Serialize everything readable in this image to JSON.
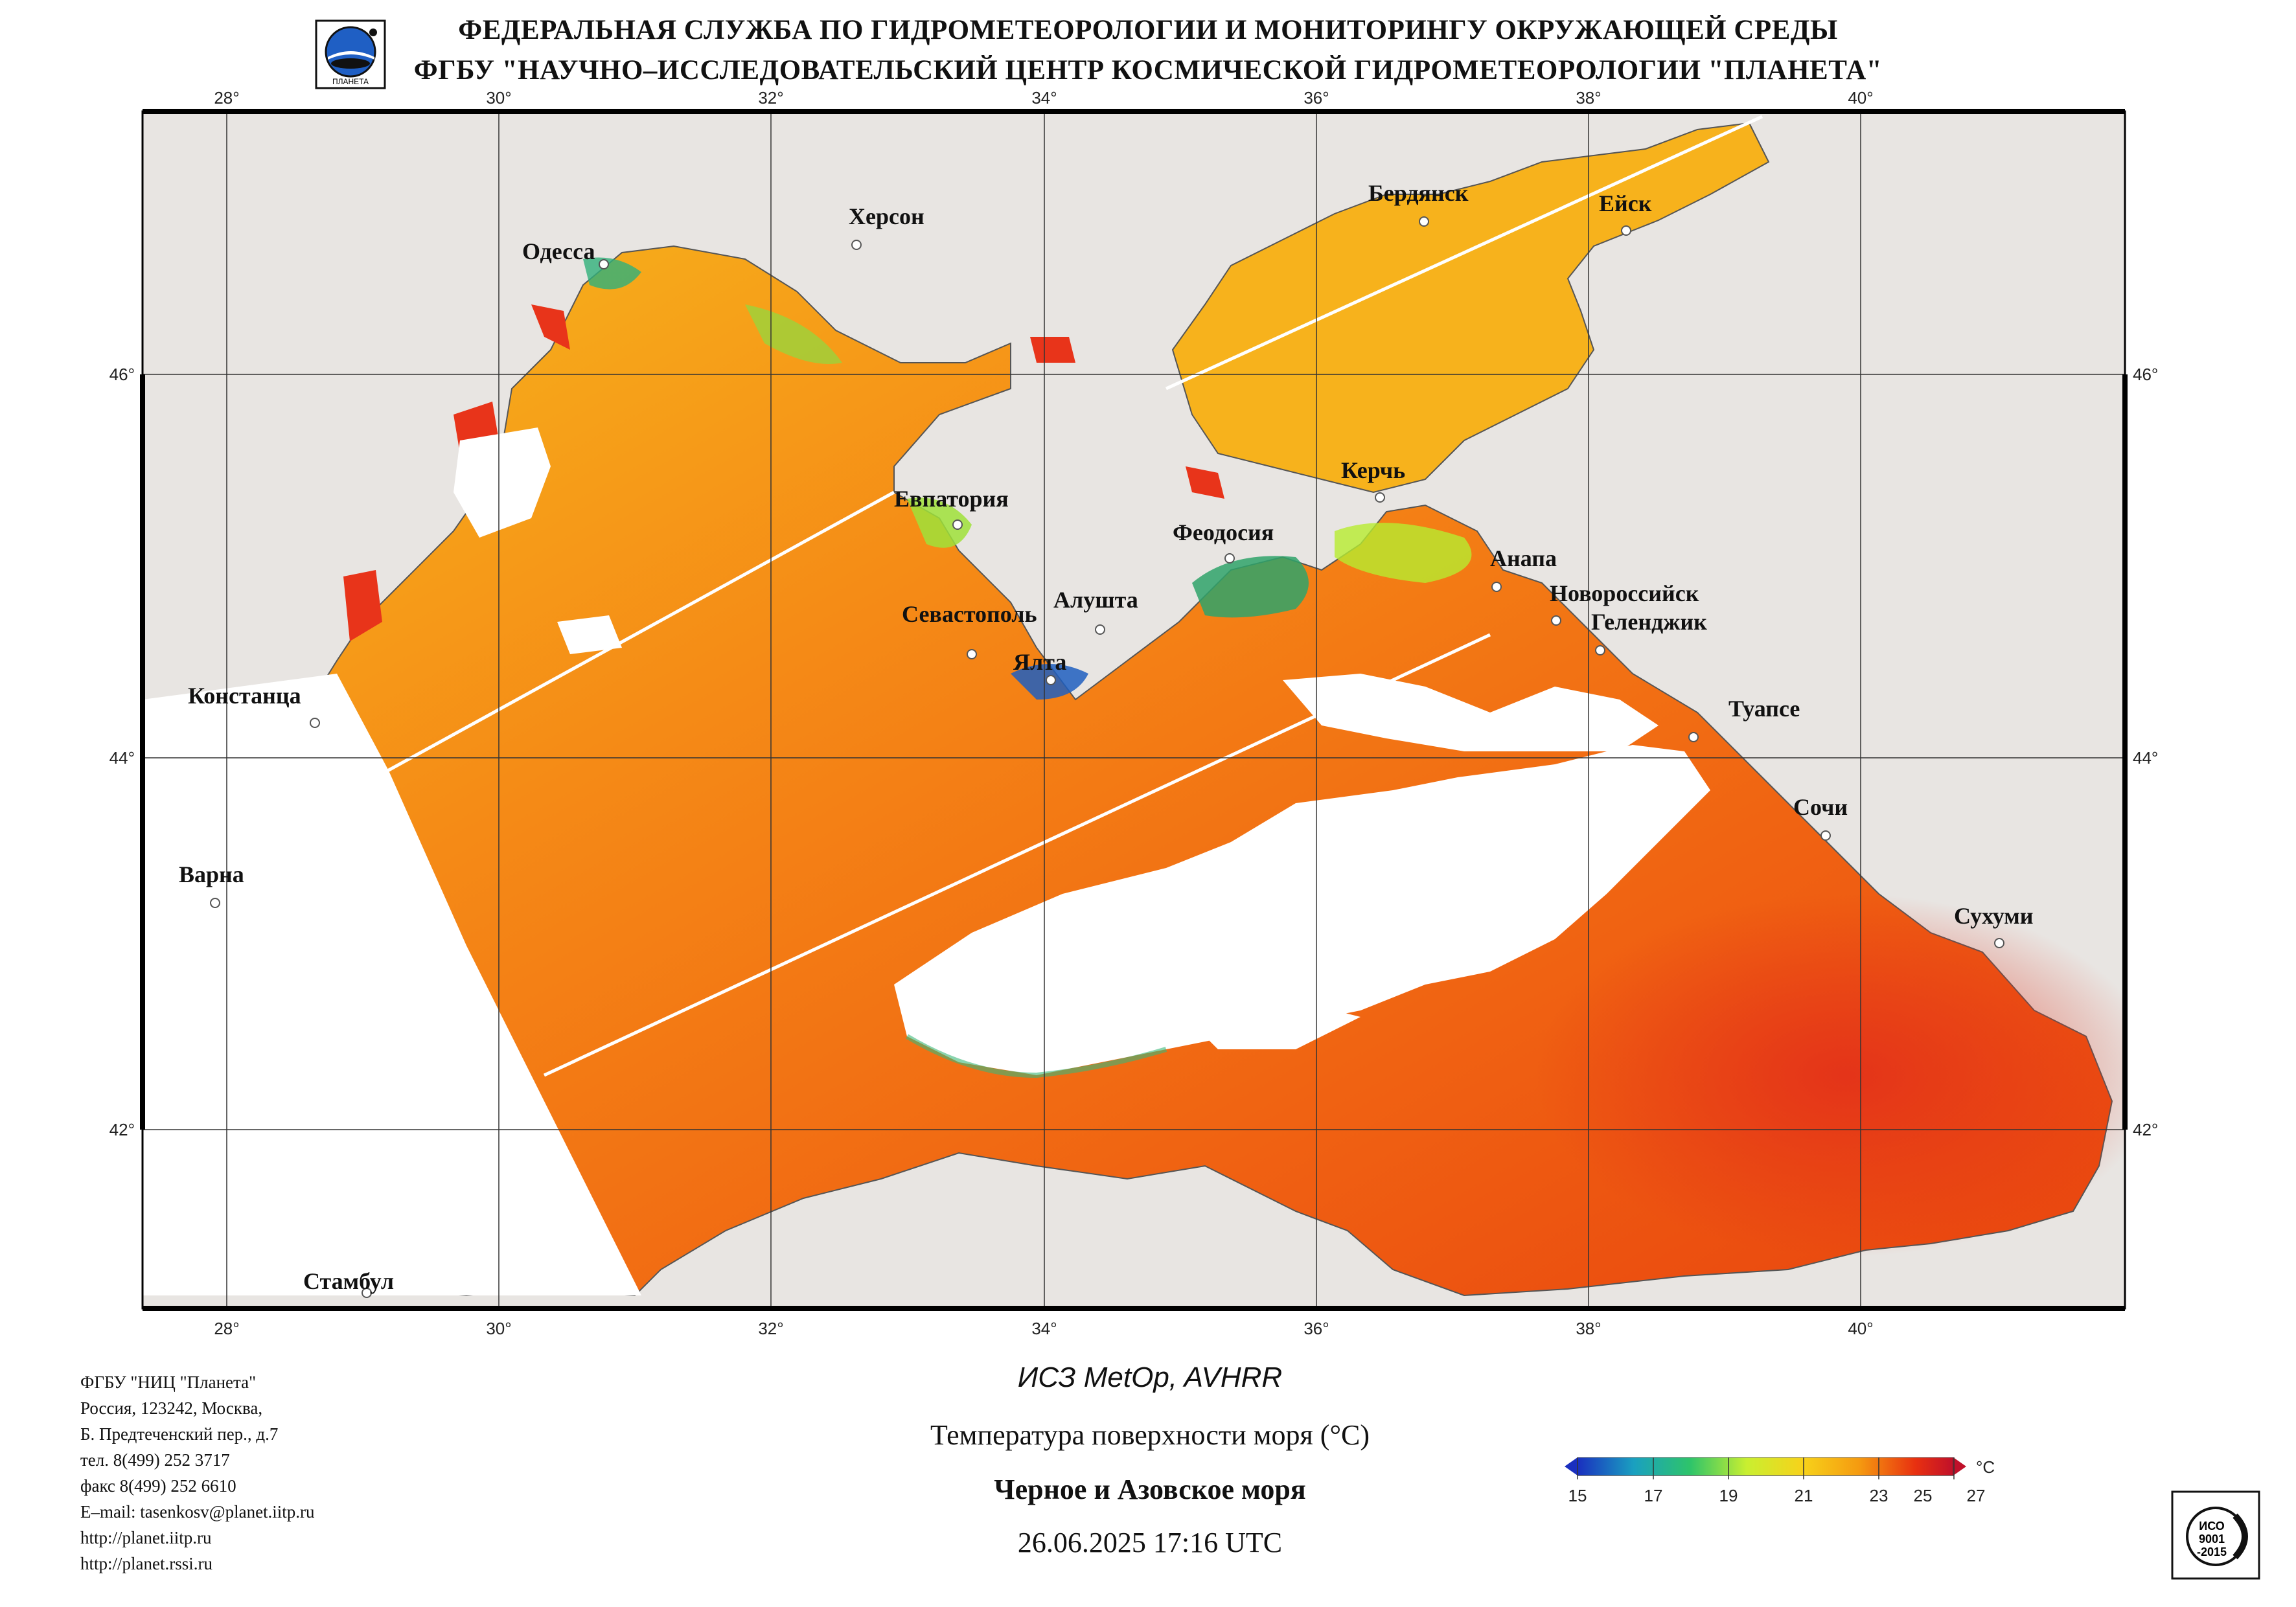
{
  "header": {
    "line1": "ФЕДЕРАЛЬНАЯ СЛУЖБА ПО ГИДРОМЕТЕОРОЛОГИИ И МОНИТОРИНГУ ОКРУЖАЮЩЕЙ СРЕДЫ",
    "line2": "ФГБУ \"НАУЧНО–ИССЛЕДОВАТЕЛЬСКИЙ ЦЕНТР КОСМИЧЕСКОЙ ГИДРОМЕТЕОРОЛОГИИ \"ПЛАНЕТА\""
  },
  "logo_icon": "planeta-globe-logo",
  "map": {
    "lon_ticks": [
      "28°",
      "30°",
      "32°",
      "34°",
      "36°",
      "38°",
      "40°"
    ],
    "lat_ticks": [
      "46°",
      "44°",
      "42°"
    ],
    "cities": [
      "Одесса",
      "Херсон",
      "Бердянск",
      "Ейск",
      "Евпатория",
      "Керчь",
      "Феодосия",
      "Анапа",
      "Новороссийск",
      "Геленджик",
      "Севастополь",
      "Алушта",
      "Ялта",
      "Констанца",
      "Туапсе",
      "Сочи",
      "Варна",
      "Сухуми",
      "Стамбул"
    ],
    "colors": {
      "land": "#e8e5e2",
      "cloud": "#ffffff",
      "warm": "#f26a10",
      "hot": "#e63a10",
      "cool": "#f7c21a",
      "cold": "#2f9a60"
    }
  },
  "org": {
    "lines": [
      "ФГБУ \"НИЦ \"Планета\"",
      "Россия, 123242, Москва,",
      "Б. Предтеченский пер., д.7",
      "тел. 8(499) 252 3717",
      "факс 8(499) 252 6610",
      "E–mail: tasenkosv@planet.iitp.ru",
      "http://planet.iitp.ru",
      "http://planet.rssi.ru"
    ]
  },
  "product": {
    "satellite": "ИСЗ MetOp, AVHRR",
    "parameter": "Температура поверхности моря (°С)",
    "region": "Черное и Азовское моря",
    "datetime": "26.06.2025 17:16 UTC"
  },
  "scale": {
    "unit": "°С",
    "ticks": [
      "15",
      "17",
      "19",
      "21",
      "23",
      "25",
      "27"
    ],
    "colors": [
      "#1a2fbf",
      "#1aa0c0",
      "#2ec46a",
      "#c9ef30",
      "#f7d21a",
      "#f59a10",
      "#e83010",
      "#c0102a"
    ]
  },
  "cert": {
    "text": [
      "ИСО",
      "9001",
      "-2015"
    ],
    "icon": "iso-certificate-icon"
  }
}
